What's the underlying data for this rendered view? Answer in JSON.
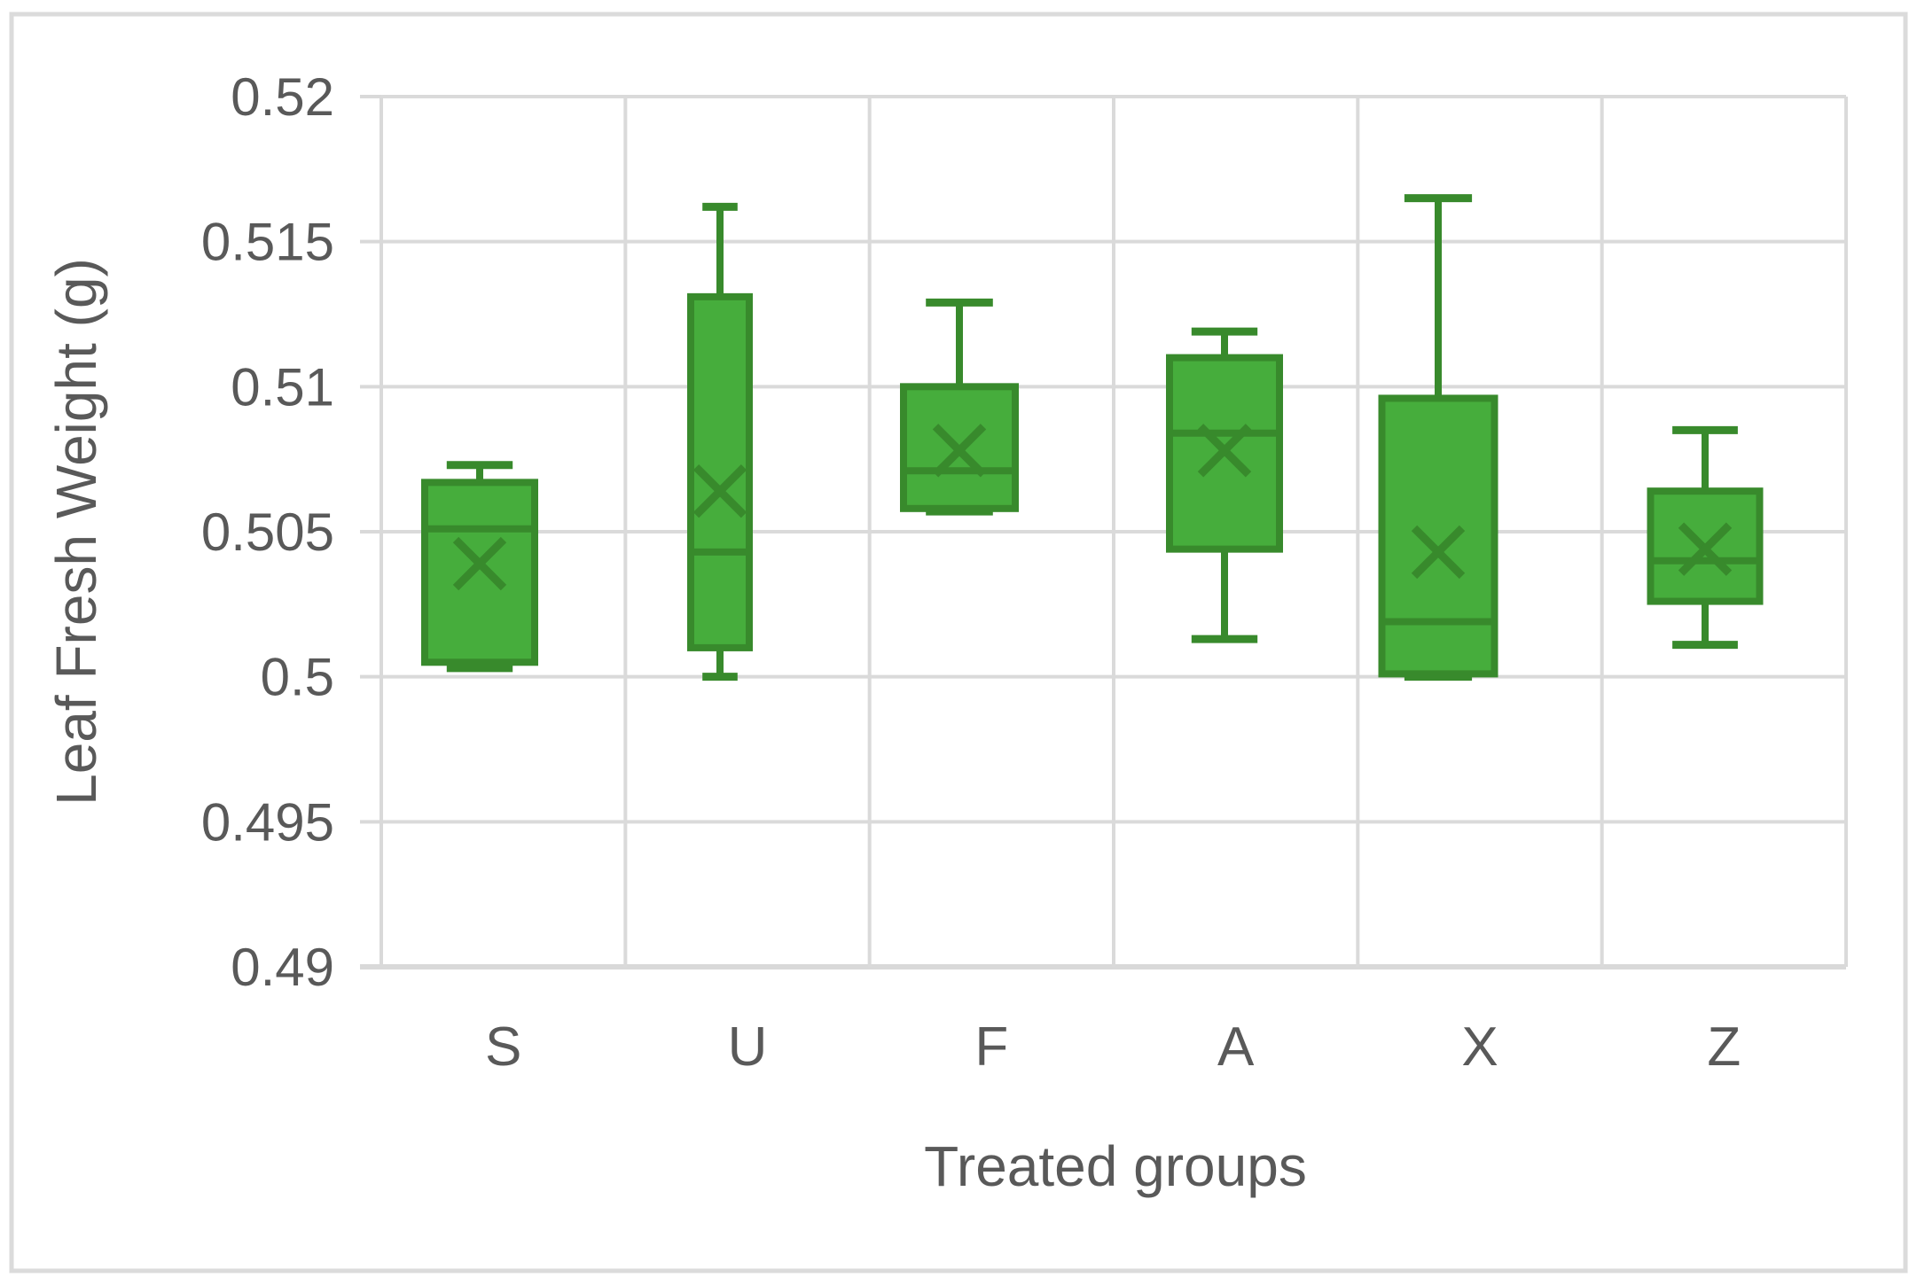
{
  "chart_data": {
    "type": "box",
    "title": "",
    "xlabel": "Treated groups",
    "ylabel": "Leaf Fresh Weight (g)",
    "categories": [
      "S",
      "U",
      "F",
      "A",
      "X",
      "Z"
    ],
    "ylim": [
      0.49,
      0.52
    ],
    "y_ticks": [
      0.52,
      0.515,
      0.51,
      0.505,
      0.5,
      0.495,
      0.49
    ],
    "y_tick_labels": [
      "0.52",
      "0.515",
      "0.51",
      "0.505",
      "0.5",
      "0.495",
      "0.49"
    ],
    "grid": true,
    "legend": "none",
    "series": [
      {
        "name": "S",
        "min": 0.5003,
        "q1": 0.5005,
        "median": 0.5051,
        "q3": 0.5067,
        "max": 0.5073,
        "mean": 0.5039
      },
      {
        "name": "U",
        "min": 0.5,
        "q1": 0.501,
        "median": 0.5043,
        "q3": 0.5131,
        "max": 0.5162,
        "mean": 0.5064
      },
      {
        "name": "F",
        "min": 0.5057,
        "q1": 0.5058,
        "median": 0.5071,
        "q3": 0.51,
        "max": 0.5129,
        "mean": 0.5078
      },
      {
        "name": "A",
        "min": 0.5013,
        "q1": 0.5044,
        "median": 0.5084,
        "q3": 0.511,
        "max": 0.5119,
        "mean": 0.5078
      },
      {
        "name": "X",
        "min": 0.5,
        "q1": 0.5001,
        "median": 0.5019,
        "q3": 0.5096,
        "max": 0.5165,
        "mean": 0.5043
      },
      {
        "name": "Z",
        "min": 0.5011,
        "q1": 0.5026,
        "median": 0.504,
        "q3": 0.5064,
        "max": 0.5085,
        "mean": 0.5044
      }
    ],
    "colors": {
      "box_fill": "#46AD3C",
      "box_border": "#388A2C",
      "gridline": "#DADADA",
      "axis_line": "#D9D9D9",
      "text": "#595959",
      "frame_border": "#DBDBDB",
      "background": "#FFFFFF"
    }
  }
}
